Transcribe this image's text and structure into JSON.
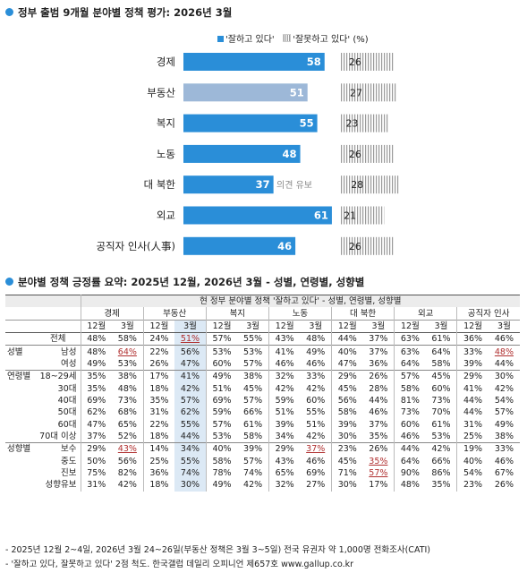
{
  "chart_data": [
    {
      "type": "bar",
      "title": "정부 출범 9개월 분야별 정책 평가: 2026년 3월",
      "legend": {
        "positive": "'잘하고 있다'",
        "negative": "'잘못하고 있다'",
        "unit": "(%)"
      },
      "categories": [
        "경제",
        "부동산",
        "복지",
        "노동",
        "대 북한",
        "외교",
        "공직자 인사(人事)"
      ],
      "series": [
        {
          "name": "'잘하고 있다'",
          "values": [
            58,
            51,
            55,
            48,
            37,
            61,
            46
          ]
        },
        {
          "name": "'잘못하고 있다'",
          "values": [
            26,
            27,
            23,
            26,
            28,
            21,
            26
          ]
        }
      ],
      "annotations": [
        {
          "category": "대 북한",
          "text": "의견 유보"
        }
      ],
      "highlighted_category": "부동산",
      "colors": {
        "positive": "#2a8ed8",
        "positive_highlight": "#9db8d8",
        "negative": "#9a9a9a"
      }
    },
    {
      "type": "table",
      "title": "분야별 정책 긍정률 요약: 2025년 12월, 2026년 3월",
      "subtitle": "- 성별, 연령별, 성향별",
      "header_top": "현 정부 분야별 정책 '잘하고 있다' - 성별, 연령별, 성향별",
      "fields": [
        "경제",
        "부동산",
        "복지",
        "노동",
        "대 북한",
        "외교",
        "공직자 인사"
      ],
      "months": [
        "12월",
        "3월"
      ],
      "rows": [
        {
          "group": "",
          "label": "전체",
          "values": [
            "48%",
            "58%",
            "24%",
            "51%",
            "57%",
            "55%",
            "43%",
            "48%",
            "44%",
            "37%",
            "63%",
            "61%",
            "36%",
            "46%"
          ]
        },
        {
          "group": "성별",
          "label": "남성",
          "values": [
            "48%",
            "64%",
            "22%",
            "56%",
            "53%",
            "53%",
            "41%",
            "49%",
            "40%",
            "37%",
            "63%",
            "64%",
            "33%",
            "48%"
          ]
        },
        {
          "group": "",
          "label": "여성",
          "values": [
            "49%",
            "53%",
            "26%",
            "47%",
            "60%",
            "57%",
            "46%",
            "46%",
            "47%",
            "36%",
            "64%",
            "58%",
            "39%",
            "44%"
          ]
        },
        {
          "group": "연령별",
          "label": "18~29세",
          "values": [
            "35%",
            "38%",
            "17%",
            "41%",
            "49%",
            "38%",
            "32%",
            "33%",
            "29%",
            "26%",
            "57%",
            "45%",
            "29%",
            "30%"
          ]
        },
        {
          "group": "",
          "label": "30대",
          "values": [
            "35%",
            "48%",
            "18%",
            "42%",
            "51%",
            "45%",
            "42%",
            "42%",
            "45%",
            "28%",
            "58%",
            "60%",
            "41%",
            "42%"
          ]
        },
        {
          "group": "",
          "label": "40대",
          "values": [
            "69%",
            "73%",
            "35%",
            "57%",
            "69%",
            "57%",
            "59%",
            "60%",
            "56%",
            "44%",
            "81%",
            "73%",
            "44%",
            "54%"
          ]
        },
        {
          "group": "",
          "label": "50대",
          "values": [
            "62%",
            "68%",
            "31%",
            "62%",
            "59%",
            "66%",
            "51%",
            "55%",
            "58%",
            "46%",
            "73%",
            "70%",
            "44%",
            "57%"
          ]
        },
        {
          "group": "",
          "label": "60대",
          "values": [
            "47%",
            "65%",
            "22%",
            "55%",
            "57%",
            "61%",
            "39%",
            "51%",
            "39%",
            "37%",
            "60%",
            "61%",
            "31%",
            "49%"
          ]
        },
        {
          "group": "",
          "label": "70대 이상",
          "values": [
            "37%",
            "52%",
            "18%",
            "44%",
            "53%",
            "58%",
            "34%",
            "42%",
            "30%",
            "35%",
            "46%",
            "53%",
            "25%",
            "38%"
          ]
        },
        {
          "group": "성향별",
          "label": "보수",
          "values": [
            "29%",
            "43%",
            "14%",
            "34%",
            "40%",
            "39%",
            "29%",
            "37%",
            "23%",
            "26%",
            "44%",
            "42%",
            "19%",
            "33%"
          ]
        },
        {
          "group": "",
          "label": "중도",
          "values": [
            "50%",
            "56%",
            "25%",
            "55%",
            "58%",
            "57%",
            "43%",
            "46%",
            "45%",
            "35%",
            "64%",
            "66%",
            "40%",
            "46%"
          ]
        },
        {
          "group": "",
          "label": "진보",
          "values": [
            "75%",
            "82%",
            "36%",
            "74%",
            "78%",
            "74%",
            "65%",
            "69%",
            "71%",
            "57%",
            "90%",
            "86%",
            "54%",
            "67%"
          ]
        },
        {
          "group": "",
          "label": "성향유보",
          "values": [
            "31%",
            "42%",
            "18%",
            "30%",
            "49%",
            "42%",
            "32%",
            "27%",
            "30%",
            "17%",
            "48%",
            "35%",
            "23%",
            "26%"
          ]
        }
      ],
      "underlined_cells": [
        [
          1,
          1
        ],
        [
          0,
          3
        ],
        [
          1,
          13
        ],
        [
          9,
          1
        ],
        [
          9,
          7
        ],
        [
          11,
          9
        ],
        [
          10,
          9
        ]
      ],
      "highlighted_column": 3
    }
  ],
  "footnotes": [
    "- 2025년 12월 2~4일, 2026년 3월 24~26일(부동산 정책은 3월 3~5일) 전국 유권자 약 1,000명 전화조사(CATI)",
    "- '잘하고 있다, 잘못하고 있다' 2점 척도. 한국갤럽 데일리 오피니언 제657호 www.gallup.co.kr"
  ]
}
